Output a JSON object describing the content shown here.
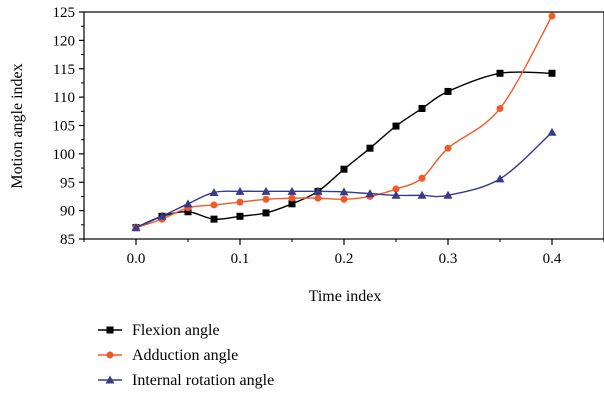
{
  "chart_data": {
    "type": "line",
    "xlabel": "Time index",
    "ylabel": "Motion angle index",
    "xlim": [
      -0.05,
      0.45
    ],
    "ylim": [
      85,
      125
    ],
    "x_ticks": [
      "0.0",
      "0.1",
      "0.2",
      "0.3",
      "0.4"
    ],
    "y_ticks": [
      "85",
      "90",
      "95",
      "100",
      "105",
      "110",
      "115",
      "120",
      "125"
    ],
    "grid": false,
    "legend_position": "below",
    "series": [
      {
        "name": "Flexion angle",
        "color": "#000000",
        "marker": "square",
        "x": [
          0.0,
          0.025,
          0.05,
          0.075,
          0.1,
          0.125,
          0.15,
          0.175,
          0.2,
          0.225,
          0.25,
          0.275,
          0.3,
          0.35,
          0.4
        ],
        "y": [
          87.0,
          89.0,
          89.8,
          88.5,
          89.0,
          89.6,
          91.2,
          93.4,
          97.3,
          101.0,
          104.9,
          108.0,
          111.0,
          114.2,
          114.2
        ]
      },
      {
        "name": "Adduction angle",
        "color": "#f05a28",
        "marker": "circle",
        "x": [
          0.0,
          0.025,
          0.05,
          0.075,
          0.1,
          0.125,
          0.15,
          0.175,
          0.2,
          0.225,
          0.25,
          0.275,
          0.3,
          0.35,
          0.4
        ],
        "y": [
          87.0,
          88.5,
          90.5,
          91.0,
          91.5,
          92.0,
          92.2,
          92.2,
          92.0,
          92.5,
          93.8,
          95.7,
          101.0,
          108.0,
          124.3
        ]
      },
      {
        "name": "Internal rotation angle",
        "color": "#3a3a8c",
        "marker": "triangle",
        "x": [
          0.0,
          0.025,
          0.05,
          0.075,
          0.1,
          0.125,
          0.15,
          0.175,
          0.2,
          0.225,
          0.25,
          0.275,
          0.3,
          0.35,
          0.4
        ],
        "y": [
          87.0,
          89.0,
          91.2,
          93.2,
          93.4,
          93.4,
          93.4,
          93.4,
          93.3,
          93.0,
          92.7,
          92.7,
          92.7,
          95.6,
          103.8
        ]
      }
    ]
  }
}
